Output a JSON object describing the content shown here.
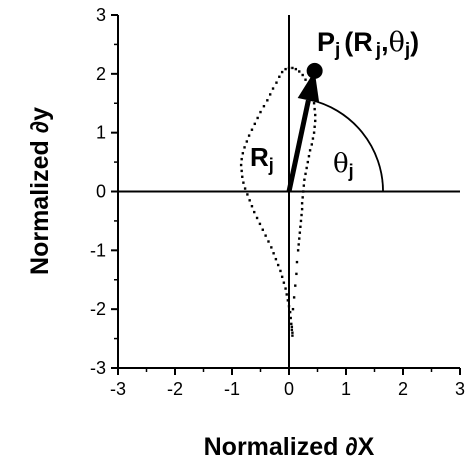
{
  "chart_data": {
    "type": "scatter",
    "title": "",
    "xlabel": "Normalized ∂X",
    "ylabel": "Normalized ∂y",
    "xlim": [
      -3,
      3
    ],
    "ylim": [
      -3,
      3
    ],
    "xticks": [
      "-3",
      "-2",
      "-1",
      "0",
      "1",
      "2",
      "3"
    ],
    "yticks": [
      "-3",
      "-2",
      "-1",
      "0",
      "1",
      "2",
      "3"
    ],
    "grid": false,
    "legend": "none",
    "series": [
      {
        "x": [
          0.06,
          0.06,
          0.05,
          0.05,
          0.04,
          0.03,
          0.02,
          0.0,
          -0.02,
          -0.04,
          -0.06,
          -0.09,
          -0.12,
          -0.15,
          -0.19,
          -0.23,
          -0.27,
          -0.31,
          -0.36,
          -0.41,
          -0.46,
          -0.51,
          -0.56,
          -0.61,
          -0.65,
          -0.69,
          -0.73,
          -0.77,
          -0.8,
          -0.82,
          -0.83,
          -0.84,
          -0.83,
          -0.81,
          -0.78,
          -0.74,
          -0.7,
          -0.65,
          -0.6,
          -0.55,
          -0.5,
          -0.44,
          -0.38,
          -0.33,
          -0.28,
          -0.22,
          -0.17,
          -0.12,
          -0.06,
          0.0,
          0.06,
          0.12,
          0.18,
          0.24,
          0.29,
          0.34,
          0.38,
          0.42,
          0.44,
          0.45,
          0.46,
          0.46,
          0.45,
          0.44,
          0.42,
          0.4,
          0.37,
          0.35,
          0.33,
          0.31,
          0.29,
          0.27,
          0.26,
          0.25,
          0.24,
          0.23,
          0.23,
          0.22,
          0.21,
          0.2,
          0.19,
          0.18,
          0.17,
          0.16,
          0.14,
          0.13,
          0.11,
          0.09,
          0.07
        ],
        "y": [
          -2.45,
          -2.4,
          -2.35,
          -2.3,
          -2.25,
          -2.15,
          -2.05,
          -1.95,
          -1.85,
          -1.75,
          -1.65,
          -1.55,
          -1.45,
          -1.35,
          -1.25,
          -1.15,
          -1.05,
          -0.95,
          -0.85,
          -0.75,
          -0.65,
          -0.55,
          -0.45,
          -0.35,
          -0.25,
          -0.15,
          -0.05,
          0.05,
          0.15,
          0.25,
          0.35,
          0.45,
          0.55,
          0.65,
          0.75,
          0.85,
          0.95,
          1.05,
          1.15,
          1.25,
          1.35,
          1.45,
          1.55,
          1.65,
          1.75,
          1.85,
          1.95,
          2.03,
          2.08,
          2.1,
          2.1,
          2.08,
          2.04,
          1.98,
          1.9,
          1.8,
          1.7,
          1.6,
          1.5,
          1.4,
          1.3,
          1.2,
          1.1,
          1.0,
          0.9,
          0.8,
          0.7,
          0.6,
          0.5,
          0.4,
          0.3,
          0.2,
          0.1,
          0.0,
          -0.1,
          -0.2,
          -0.3,
          -0.4,
          -0.5,
          -0.6,
          -0.7,
          -0.8,
          -0.9,
          -1.0,
          -1.2,
          -1.4,
          -1.6,
          -1.8,
          -2.0
        ]
      }
    ],
    "vector": {
      "tip_x": 0.45,
      "tip_y": 2.05
    }
  },
  "annotations": {
    "point_P": "P",
    "point_sub": "j",
    "point_args_open": "(R",
    "point_args_sub": "j",
    "point_args_comma": ",",
    "point_theta": "θ",
    "point_theta_sub": "j",
    "point_args_close": ")",
    "R_label": "R",
    "R_sub": "j",
    "theta_label": "θ",
    "theta_sub": "j"
  }
}
